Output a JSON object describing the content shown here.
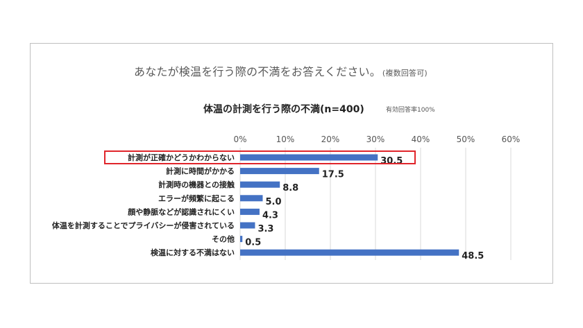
{
  "question": {
    "text": "あなたが検温を行う際の不満をお答えください。",
    "note": "(複数回答可)"
  },
  "chart_data": {
    "type": "bar",
    "orientation": "horizontal",
    "title": "体温の計測を行う際の不満(n=400)",
    "subtitle": "有効回答率100%",
    "categories": [
      "計測が正確かどうかわからない",
      "計測に時間がかかる",
      "計測時の機器との接触",
      "エラーが頻繁に起こる",
      "顔や静脈などが認識されにくい",
      "体温を計測することでプライバシーが侵害されている",
      "その他",
      "検温に対する不満はない"
    ],
    "values": [
      30.5,
      17.5,
      8.8,
      5.0,
      4.3,
      3.3,
      0.5,
      48.5
    ],
    "value_labels": [
      "30.5",
      "17.5",
      "8.8",
      "5.0",
      "4.3",
      "3.3",
      "0.5",
      "48.5"
    ],
    "xlim": [
      0,
      60
    ],
    "xticks": [
      "0%",
      "10%",
      "20%",
      "30%",
      "40%",
      "50%",
      "60%"
    ],
    "xaxis_position": "top",
    "grid": true,
    "bar_color": "#4472c4",
    "highlight": {
      "category_index": 0,
      "color": "#e0242a"
    }
  }
}
